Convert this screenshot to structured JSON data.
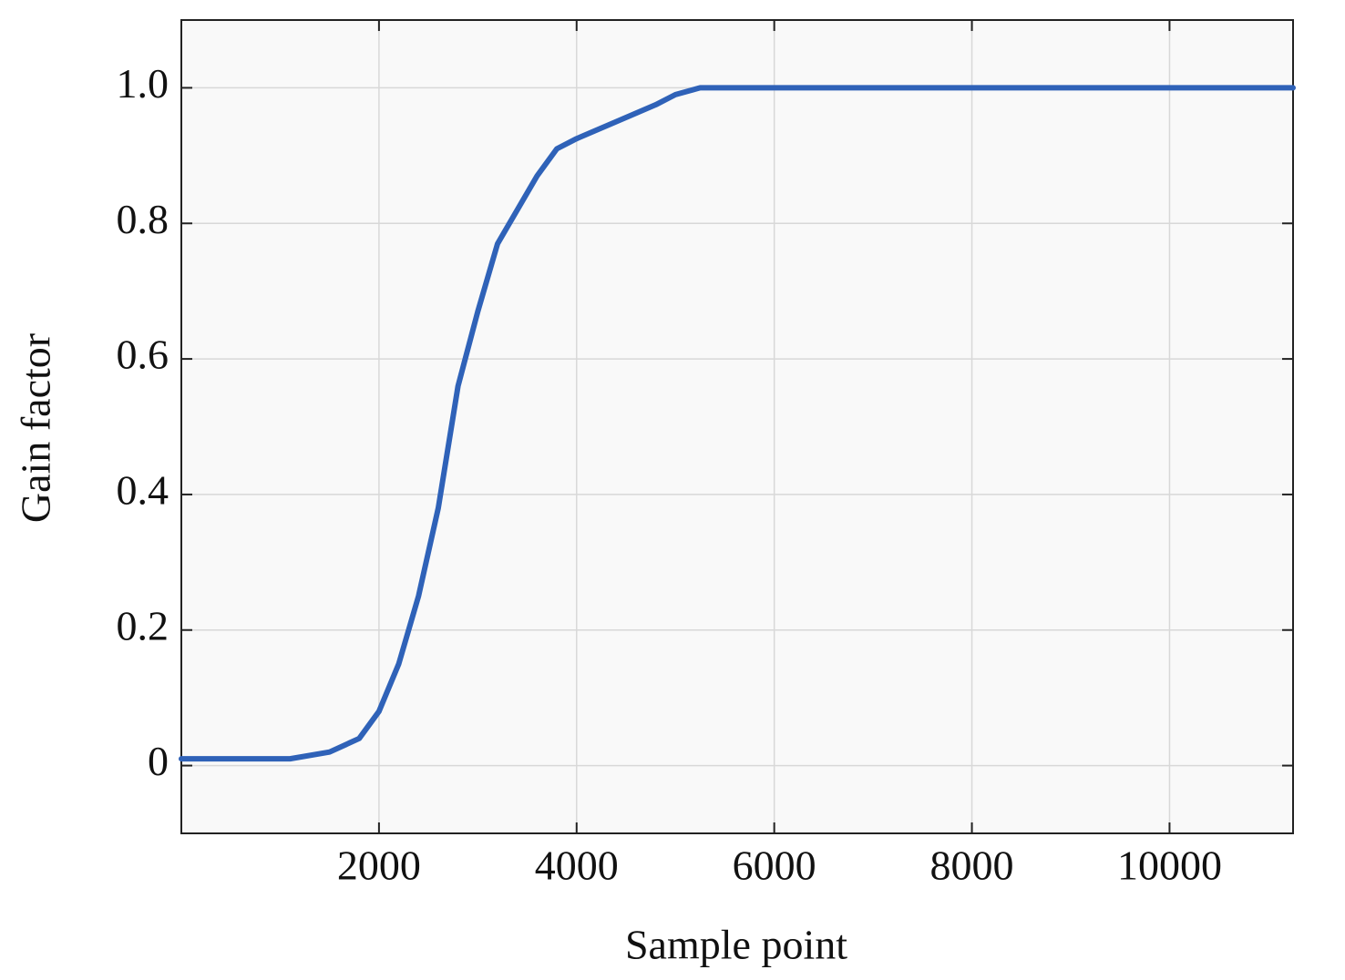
{
  "chart_data": {
    "type": "line",
    "xlabel": "Sample point",
    "ylabel": "Gain factor",
    "x": [
      0,
      1100,
      1500,
      1800,
      2000,
      2200,
      2400,
      2600,
      2800,
      3000,
      3200,
      3400,
      3600,
      3800,
      4000,
      4400,
      4800,
      5000,
      5250,
      11250
    ],
    "values": [
      0.01,
      0.01,
      0.02,
      0.04,
      0.08,
      0.15,
      0.25,
      0.38,
      0.56,
      0.67,
      0.77,
      0.82,
      0.87,
      0.91,
      0.925,
      0.95,
      0.975,
      0.99,
      1.0,
      1.0
    ],
    "color": "#2f62b8",
    "xlim": [
      0,
      11250
    ],
    "xticks": [
      2000,
      4000,
      6000,
      8000,
      10000
    ],
    "ylim": [
      -0.1,
      1.1
    ],
    "yticks": [
      0,
      0.2,
      0.4,
      0.6,
      0.8,
      {
        "value": 1,
        "label": "1.0"
      }
    ],
    "grid": true
  }
}
